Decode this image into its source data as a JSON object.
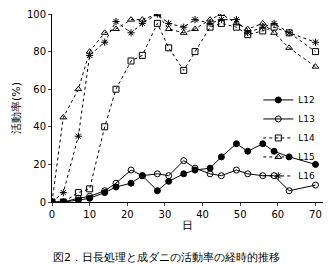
{
  "chart_data": {
    "type": "line",
    "title": "図2．日長処理と成ダニの活動率の経時的推移",
    "x_label": "日",
    "y_label": "活動率(%)",
    "x": [
      0,
      3,
      7,
      10,
      14,
      17,
      21,
      24,
      28,
      31,
      35,
      38,
      42,
      45,
      49,
      52,
      56,
      59,
      63,
      70
    ],
    "series": [
      {
        "name": "L12",
        "color": "#000000",
        "marker": "circle",
        "line_style": "solid",
        "values": [
          0,
          0,
          1,
          2,
          5,
          8,
          10,
          14,
          6,
          11,
          15,
          17,
          18,
          24,
          31,
          27,
          31,
          27,
          24,
          20
        ]
      },
      {
        "name": "L13",
        "color": "#000000",
        "marker": "circle-open",
        "line_style": "solid",
        "values": [
          0,
          0,
          2,
          3,
          6,
          10,
          17,
          14,
          15,
          14,
          22,
          18,
          15,
          14,
          17,
          15,
          14,
          14,
          6,
          9
        ]
      },
      {
        "name": "L14",
        "color": "#000000",
        "marker": "square-open",
        "line_style": "dotted",
        "values": [
          0,
          0,
          5,
          7,
          40,
          60,
          75,
          78,
          95,
          82,
          70,
          80,
          93,
          95,
          93,
          89,
          91,
          93,
          90,
          80
        ]
      },
      {
        "name": "L15",
        "color": "#000000",
        "marker": "triangle-up-open",
        "line_style": "dotted",
        "values": [
          0,
          45,
          60,
          80,
          90,
          92,
          97,
          97,
          100,
          92,
          90,
          92,
          97,
          100,
          95,
          92,
          95,
          90,
          82,
          72
        ]
      },
      {
        "name": "L16",
        "color": "#000000",
        "marker": "asterisk-open",
        "line_style": "dotted",
        "values": [
          0,
          5,
          35,
          78,
          85,
          96,
          90,
          95,
          100,
          95,
          93,
          97,
          95,
          97,
          97,
          90,
          93,
          95,
          90,
          85
        ]
      }
    ],
    "xlim": [
      0,
      72
    ],
    "xticks": [
      0,
      10,
      20,
      30,
      40,
      50,
      60,
      70
    ],
    "ylim": [
      0,
      100
    ],
    "yticks": [
      0,
      20,
      40,
      60,
      80,
      100
    ],
    "grid": false,
    "legend": "right"
  }
}
